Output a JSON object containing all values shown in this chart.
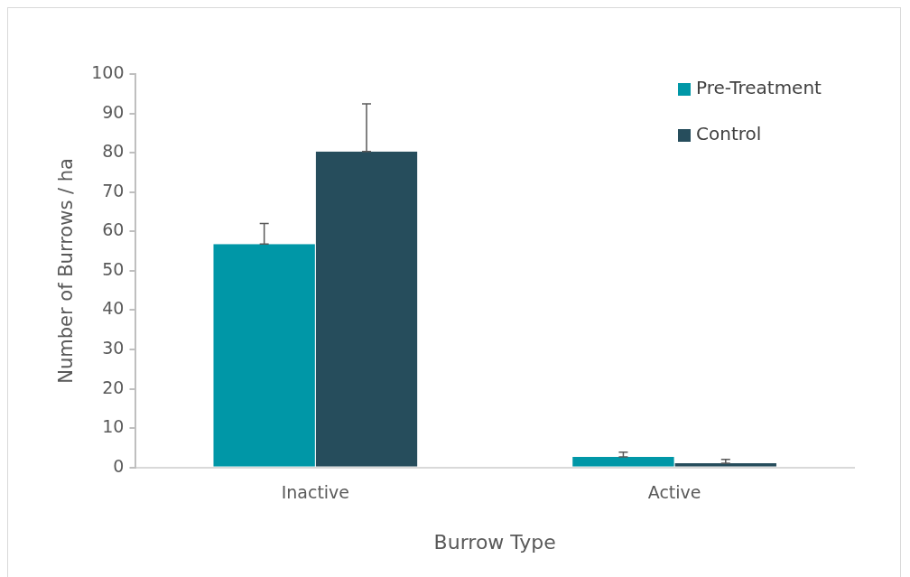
{
  "chart_data": {
    "type": "bar",
    "xlabel": "Burrow Type",
    "ylabel": "Number of Burrows / ha",
    "categories": [
      "Inactive",
      "Active"
    ],
    "series": [
      {
        "name": "Pre-Treatment",
        "color": "#0097a7",
        "values": [
          56.8,
          2.7
        ],
        "errors": [
          [
            56.8,
            62.0
          ],
          [
            2.7,
            3.9
          ]
        ]
      },
      {
        "name": "Control",
        "color": "#264d5c",
        "values": [
          80.3,
          1.1
        ],
        "errors": [
          [
            80.3,
            92.4
          ],
          [
            1.1,
            2.1
          ]
        ]
      }
    ],
    "ylim": [
      0,
      100
    ],
    "yticks": [
      0,
      10,
      20,
      30,
      40,
      50,
      60,
      70,
      80,
      90,
      100
    ],
    "grid": false,
    "legend": "top right"
  }
}
